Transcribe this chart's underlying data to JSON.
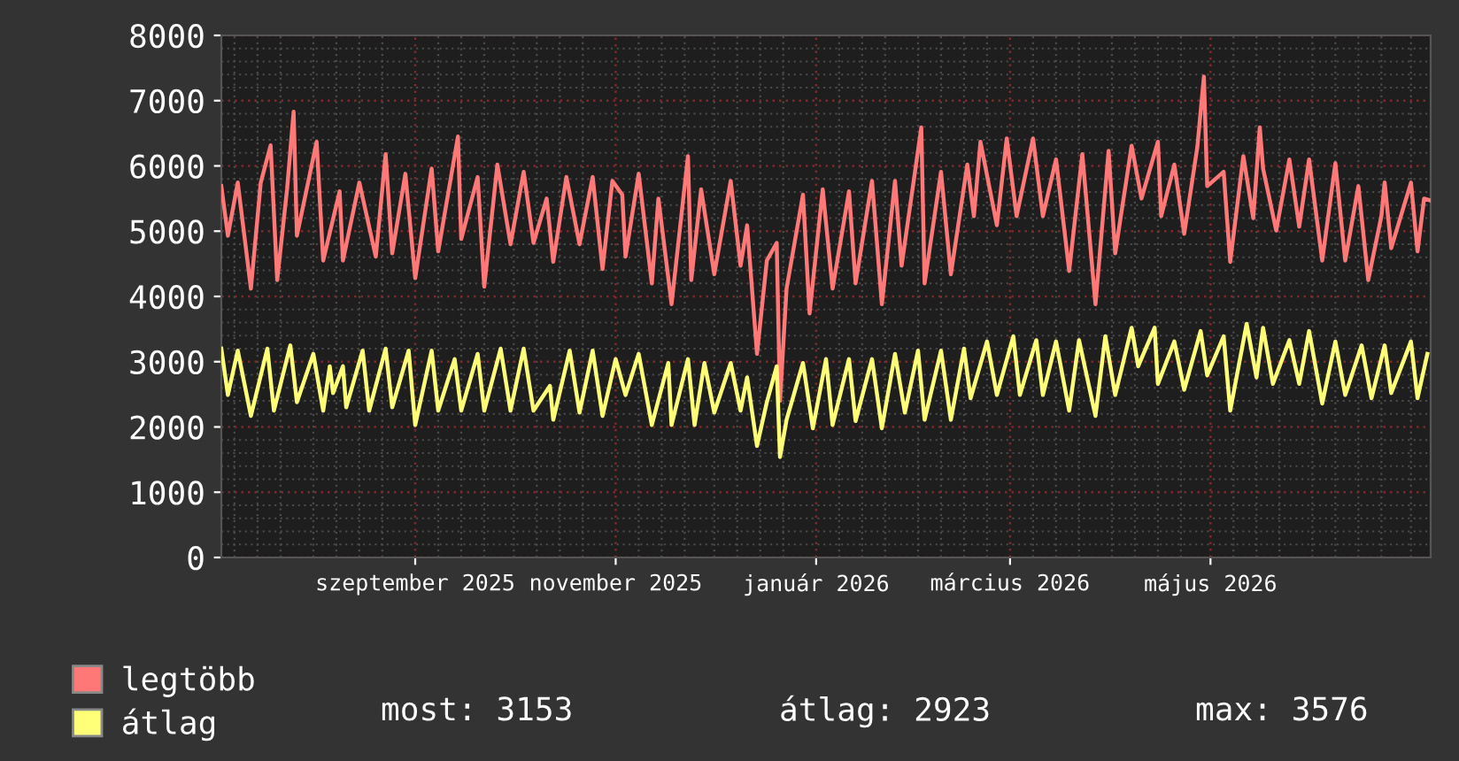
{
  "chart_data": {
    "type": "line",
    "xlim": [
      "2025-07-04",
      "2026-07-07"
    ],
    "xticks": [
      {
        "value": "2025-09-01",
        "label": "szeptember 2025"
      },
      {
        "value": "2025-11-01",
        "label": "november 2025"
      },
      {
        "value": "2026-01-01",
        "label": "január 2026"
      },
      {
        "value": "2026-03-01",
        "label": "március 2026"
      },
      {
        "value": "2026-05-01",
        "label": "május 2026"
      }
    ],
    "ylim": [
      0,
      8000
    ],
    "yticks": [
      0,
      1000,
      2000,
      3000,
      4000,
      5000,
      6000,
      7000,
      8000
    ],
    "grid": true,
    "legend": "bottom",
    "marker": "none",
    "line_style": "solid",
    "series": [
      {
        "name": "legtöbb",
        "color": "#ff7878",
        "x": [
          "2025-07-04",
          "2025-07-06",
          "2025-07-09",
          "2025-07-13",
          "2025-07-16",
          "2025-07-19",
          "2025-07-21",
          "2025-07-24",
          "2025-07-26",
          "2025-07-27",
          "2025-08-02",
          "2025-08-04",
          "2025-08-09",
          "2025-08-10",
          "2025-08-15",
          "2025-08-20",
          "2025-08-23",
          "2025-08-25",
          "2025-08-29",
          "2025-09-01",
          "2025-09-06",
          "2025-09-08",
          "2025-09-14",
          "2025-09-15",
          "2025-09-20",
          "2025-09-22",
          "2025-09-26",
          "2025-09-30",
          "2025-10-04",
          "2025-10-07",
          "2025-10-11",
          "2025-10-13",
          "2025-10-17",
          "2025-10-21",
          "2025-10-25",
          "2025-10-28",
          "2025-10-31",
          "2025-11-03",
          "2025-11-04",
          "2025-11-08",
          "2025-11-12",
          "2025-11-14",
          "2025-11-18",
          "2025-11-23",
          "2025-11-24",
          "2025-11-27",
          "2025-12-01",
          "2025-12-06",
          "2025-12-09",
          "2025-12-11",
          "2025-12-14",
          "2025-12-17",
          "2025-12-20",
          "2025-12-21",
          "2025-12-23",
          "2025-12-28",
          "2025-12-30",
          "2026-01-03",
          "2026-01-06",
          "2026-01-11",
          "2026-01-13",
          "2026-01-18",
          "2026-01-21",
          "2026-01-25",
          "2026-01-27",
          "2026-01-31",
          "2026-02-02",
          "2026-02-03",
          "2026-02-08",
          "2026-02-11",
          "2026-02-16",
          "2026-02-18",
          "2026-02-20",
          "2026-02-25",
          "2026-02-28",
          "2026-03-03",
          "2026-03-08",
          "2026-03-11",
          "2026-03-15",
          "2026-03-19",
          "2026-03-23",
          "2026-03-27",
          "2026-03-31",
          "2026-04-02",
          "2026-04-07",
          "2026-04-10",
          "2026-04-15",
          "2026-04-16",
          "2026-04-20",
          "2026-04-23",
          "2026-04-27",
          "2026-04-29",
          "2026-04-30",
          "2026-05-05",
          "2026-05-07",
          "2026-05-11",
          "2026-05-14",
          "2026-05-16",
          "2026-05-17",
          "2026-05-21",
          "2026-05-25",
          "2026-05-28",
          "2026-05-31",
          "2026-06-04",
          "2026-06-08",
          "2026-06-11",
          "2026-06-15",
          "2026-06-18",
          "2026-06-22",
          "2026-06-23",
          "2026-06-25",
          "2026-07-01",
          "2026-07-03",
          "2026-07-05",
          "2026-07-07"
        ],
        "values": [
          5690,
          4930,
          5745,
          4120,
          5745,
          6315,
          4250,
          5640,
          6830,
          4930,
          6370,
          4550,
          5610,
          4550,
          5745,
          4610,
          6180,
          4660,
          5880,
          4280,
          5960,
          4690,
          6450,
          4880,
          5830,
          4150,
          6020,
          4800,
          5910,
          4820,
          5500,
          4530,
          5830,
          4800,
          5830,
          4420,
          5770,
          5560,
          4610,
          5880,
          4200,
          5500,
          3880,
          6150,
          4250,
          5640,
          4340,
          5770,
          4470,
          5090,
          3120,
          4550,
          4820,
          2400,
          4120,
          5560,
          3740,
          5640,
          4120,
          5610,
          4200,
          5770,
          3880,
          5770,
          4470,
          5880,
          6590,
          4200,
          5910,
          4340,
          6020,
          5230,
          6370,
          5090,
          6420,
          5230,
          6420,
          5230,
          6100,
          4390,
          6180,
          3880,
          6230,
          4660,
          6310,
          5500,
          6370,
          5230,
          6020,
          4960,
          6290,
          7370,
          5690,
          5910,
          4530,
          6150,
          5200,
          6590,
          5960,
          5010,
          6100,
          5070,
          6100,
          4550,
          6040,
          4550,
          5690,
          4250,
          5230,
          5745,
          4740,
          5745,
          4690,
          5500,
          5470
        ]
      },
      {
        "name": "átlag",
        "color": "#ffff78",
        "x": [
          "2025-07-04",
          "2025-07-06",
          "2025-07-09",
          "2025-07-13",
          "2025-07-18",
          "2025-07-20",
          "2025-07-25",
          "2025-07-27",
          "2025-08-01",
          "2025-08-04",
          "2025-08-06",
          "2025-08-07",
          "2025-08-10",
          "2025-08-11",
          "2025-08-16",
          "2025-08-18",
          "2025-08-23",
          "2025-08-25",
          "2025-08-30",
          "2025-09-01",
          "2025-09-06",
          "2025-09-08",
          "2025-09-13",
          "2025-09-15",
          "2025-09-20",
          "2025-09-22",
          "2025-09-27",
          "2025-09-30",
          "2025-10-04",
          "2025-10-07",
          "2025-10-12",
          "2025-10-13",
          "2025-10-18",
          "2025-10-21",
          "2025-10-25",
          "2025-10-28",
          "2025-11-01",
          "2025-11-04",
          "2025-11-08",
          "2025-11-12",
          "2025-11-17",
          "2025-11-18",
          "2025-11-23",
          "2025-11-25",
          "2025-11-28",
          "2025-12-01",
          "2025-12-06",
          "2025-12-09",
          "2025-12-11",
          "2025-12-14",
          "2025-12-17",
          "2025-12-20",
          "2025-12-21",
          "2025-12-23",
          "2025-12-28",
          "2025-12-31",
          "2026-01-04",
          "2026-01-06",
          "2026-01-11",
          "2026-01-13",
          "2026-01-18",
          "2026-01-21",
          "2026-01-25",
          "2026-01-28",
          "2026-02-01",
          "2026-02-03",
          "2026-02-08",
          "2026-02-11",
          "2026-02-15",
          "2026-02-17",
          "2026-02-22",
          "2026-02-25",
          "2026-03-02",
          "2026-03-04",
          "2026-03-09",
          "2026-03-11",
          "2026-03-15",
          "2026-03-19",
          "2026-03-22",
          "2026-03-27",
          "2026-03-30",
          "2026-04-02",
          "2026-04-07",
          "2026-04-09",
          "2026-04-14",
          "2026-04-15",
          "2026-04-20",
          "2026-04-23",
          "2026-04-28",
          "2026-04-30",
          "2026-05-05",
          "2026-05-07",
          "2026-05-12",
          "2026-05-15",
          "2026-05-17",
          "2026-05-20",
          "2026-05-25",
          "2026-05-28",
          "2026-05-31",
          "2026-06-04",
          "2026-06-08",
          "2026-06-11",
          "2026-06-16",
          "2026-06-19",
          "2026-06-23",
          "2026-06-25",
          "2026-07-01",
          "2026-07-03",
          "2026-07-06"
        ],
        "values": [
          3200,
          2490,
          3170,
          2170,
          3200,
          2250,
          3250,
          2380,
          3120,
          2250,
          2930,
          2520,
          2930,
          2300,
          3170,
          2250,
          3200,
          2300,
          3170,
          2030,
          3170,
          2250,
          3040,
          2250,
          3120,
          2250,
          3200,
          2250,
          3200,
          2250,
          2630,
          2110,
          3170,
          2220,
          3170,
          2170,
          3040,
          2490,
          3120,
          2030,
          2980,
          2030,
          3040,
          2030,
          2980,
          2220,
          2980,
          2250,
          2760,
          1710,
          2380,
          2930,
          1540,
          2110,
          2980,
          1980,
          3040,
          2030,
          3040,
          2090,
          3040,
          1980,
          3120,
          2220,
          3170,
          2110,
          3170,
          2110,
          3200,
          2440,
          3310,
          2490,
          3390,
          2490,
          3330,
          2490,
          3310,
          2250,
          3330,
          2170,
          3390,
          2490,
          3520,
          2930,
          3520,
          2660,
          3310,
          2570,
          3470,
          2790,
          3390,
          2250,
          3580,
          2760,
          3520,
          2660,
          3330,
          2660,
          3470,
          2360,
          3310,
          2490,
          3250,
          2440,
          3250,
          2520,
          3310,
          2440,
          3120
        ]
      }
    ],
    "annotations": [
      "most: 3153",
      "átlag: 2923",
      "max: 3576"
    ]
  }
}
